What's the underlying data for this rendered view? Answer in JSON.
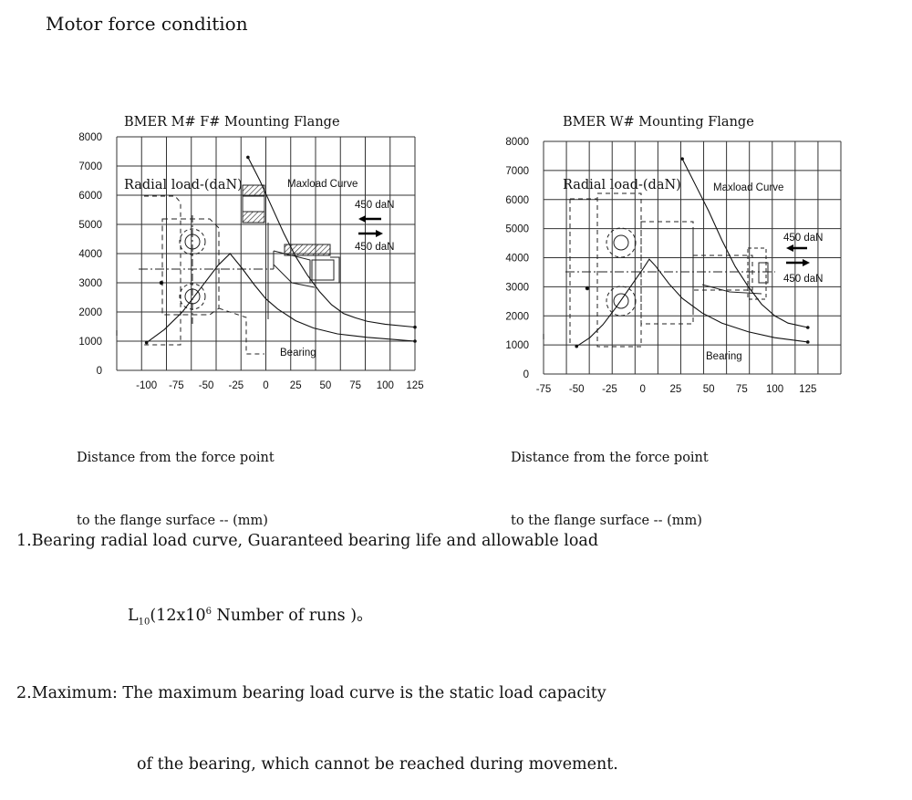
{
  "page": {
    "title": "Motor force condition"
  },
  "charts_meta": [
    {
      "caption_lines": [
        "BMER M# F# Mounting Flange",
        "Radial load-(daN)"
      ],
      "xcaption_lines": [
        "Distance from the force point",
        "to the flange surface -- (mm)"
      ],
      "maxload_label": "Maxload  Curve",
      "bearing_label": "Bearing",
      "force_label_1": "450  daN",
      "force_label_2": "450  daN"
    },
    {
      "caption_lines": [
        "BMER W# Mounting Flange",
        "Radial load-(daN)"
      ],
      "xcaption_lines": [
        "Distance from the force point",
        "to the flange surface -- (mm)"
      ],
      "maxload_label": "Maxload  Curve",
      "bearing_label": "Bearing",
      "force_label_1": "450  daN",
      "force_label_2": "450  daN"
    }
  ],
  "chart_data": [
    {
      "type": "line",
      "title": "BMER M# F# Mounting Flange",
      "ylabel": "Radial load-(daN)",
      "xlabel": "Distance from the force point to the flange surface -- (mm)",
      "xlim": [
        -125,
        125
      ],
      "ylim": [
        0,
        8000
      ],
      "x_ticks": [
        -100,
        -75,
        -50,
        -25,
        0,
        25,
        50,
        75,
        100,
        125
      ],
      "x_tick_labels": [
        "-100",
        "-75",
        "-50",
        "-25",
        "0",
        "25",
        "50",
        "75",
        "100",
        "125"
      ],
      "y_ticks": [
        0,
        1000,
        2000,
        3000,
        4000,
        5000,
        6000,
        7000,
        8000
      ],
      "y_tick_labels": [
        "0",
        "1000",
        "2000",
        "3000",
        "4000",
        "5000",
        "6000",
        "7000",
        "8000"
      ],
      "grid": true,
      "series": [
        {
          "name": "Maxload  Curve",
          "x": [
            -15,
            -5,
            5,
            15,
            25,
            35,
            45,
            55,
            65,
            75,
            85,
            100,
            125
          ],
          "y": [
            7300,
            6500,
            5600,
            4700,
            3900,
            3250,
            2700,
            2250,
            1950,
            1800,
            1680,
            1580,
            1480
          ]
        },
        {
          "name": "Bearing",
          "x": [
            -100,
            -85,
            -70,
            -55,
            -40,
            -30,
            -20,
            -10,
            0,
            10,
            25,
            40,
            60,
            85,
            110,
            125
          ],
          "y": [
            950,
            1400,
            2000,
            2800,
            3600,
            4000,
            3500,
            2950,
            2450,
            2100,
            1700,
            1450,
            1250,
            1130,
            1050,
            1000
          ]
        }
      ]
    },
    {
      "type": "line",
      "title": "BMER W# Mounting Flange",
      "ylabel": "Radial load-(daN)",
      "xlabel": "Distance from the force point to the flange surface -- (mm)",
      "xlim": [
        -75,
        150
      ],
      "ylim": [
        0,
        8000
      ],
      "x_ticks": [
        -75,
        -50,
        -25,
        0,
        25,
        50,
        75,
        100,
        125
      ],
      "x_tick_labels": [
        "-75",
        "-50",
        "-25",
        "0",
        "25",
        "50",
        "75",
        "100",
        "125"
      ],
      "y_ticks": [
        0,
        1000,
        2000,
        3000,
        4000,
        5000,
        6000,
        7000,
        8000
      ],
      "y_tick_labels": [
        "0",
        "1000",
        "2000",
        "3000",
        "4000",
        "5000",
        "6000",
        "7000",
        "8000"
      ],
      "grid": true,
      "series": [
        {
          "name": "Maxload  Curve",
          "x": [
            30,
            40,
            50,
            60,
            70,
            80,
            90,
            100,
            110,
            125
          ],
          "y": [
            7400,
            6500,
            5600,
            4600,
            3700,
            3000,
            2400,
            2000,
            1750,
            1600
          ]
        },
        {
          "name": "Bearing",
          "x": [
            -50,
            -40,
            -30,
            -20,
            -10,
            0,
            5,
            10,
            20,
            30,
            45,
            60,
            80,
            100,
            125
          ],
          "y": [
            950,
            1250,
            1700,
            2300,
            2950,
            3600,
            3950,
            3700,
            3100,
            2600,
            2100,
            1750,
            1450,
            1250,
            1100
          ]
        }
      ]
    }
  ],
  "notes": {
    "line1": "1.Bearing radial load curve, Guaranteed bearing life and allowable load",
    "line2_pre": "L",
    "line2_sub": "10",
    "line2_mid": "(12x10",
    "line2_sup": "6",
    "line2_post": " Number of runs )。",
    "line3": "2.Maximum: The maximum bearing load curve is the static load capacity",
    "line4": "of the bearing, which cannot be reached during movement."
  }
}
